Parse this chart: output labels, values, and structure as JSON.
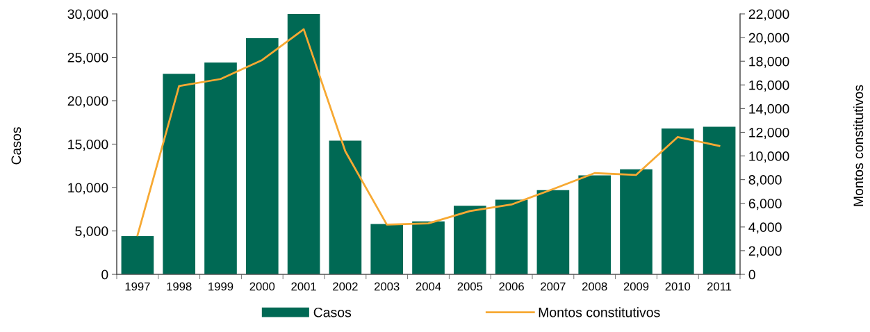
{
  "chart_data": {
    "type": "bar",
    "ylabel": "Casos",
    "y2label": "Montos constitutivos",
    "categories": [
      "1997",
      "1998",
      "1999",
      "2000",
      "2001",
      "2002",
      "2003",
      "2004",
      "2005",
      "2006",
      "2007",
      "2008",
      "2009",
      "2010",
      "2011"
    ],
    "series": [
      {
        "name": "Casos",
        "color": "#006954",
        "values": [
          4400,
          23100,
          24400,
          27200,
          30000,
          15400,
          5800,
          6100,
          7900,
          8600,
          9700,
          11400,
          12100,
          16800,
          17000
        ]
      },
      {
        "name": "Montos constitutivos",
        "type": "line",
        "axis": "y2",
        "color": "#f7a933",
        "values": [
          3300,
          15900,
          16500,
          18100,
          20700,
          10400,
          4200,
          4300,
          5350,
          5900,
          7200,
          8550,
          8400,
          11600,
          10850
        ]
      }
    ],
    "ylim": [
      0,
      30000
    ],
    "yticks": [
      {
        "value": 0,
        "label": "0"
      },
      {
        "value": 5000,
        "label": "5,000"
      },
      {
        "value": 10000,
        "label": "10,000"
      },
      {
        "value": 15000,
        "label": "15,000"
      },
      {
        "value": 20000,
        "label": "20,000"
      },
      {
        "value": 25000,
        "label": "25,000"
      },
      {
        "value": 30000,
        "label": "30,000"
      }
    ],
    "y2lim": [
      0,
      22000
    ],
    "y2ticks": [
      {
        "value": 0,
        "label": "0"
      },
      {
        "value": 2000,
        "label": "2,000"
      },
      {
        "value": 4000,
        "label": "4,000"
      },
      {
        "value": 6000,
        "label": "6,000"
      },
      {
        "value": 8000,
        "label": "8,000"
      },
      {
        "value": 10000,
        "label": "10,000"
      },
      {
        "value": 12000,
        "label": "12,000"
      },
      {
        "value": 14000,
        "label": "14,000"
      },
      {
        "value": 16000,
        "label": "16,000"
      },
      {
        "value": 18000,
        "label": "18,000"
      },
      {
        "value": 20000,
        "label": "20,000"
      },
      {
        "value": 22000,
        "label": "22,000"
      }
    ],
    "grid": false,
    "legend": "bottom",
    "marker": "none",
    "line_style": "solid"
  }
}
